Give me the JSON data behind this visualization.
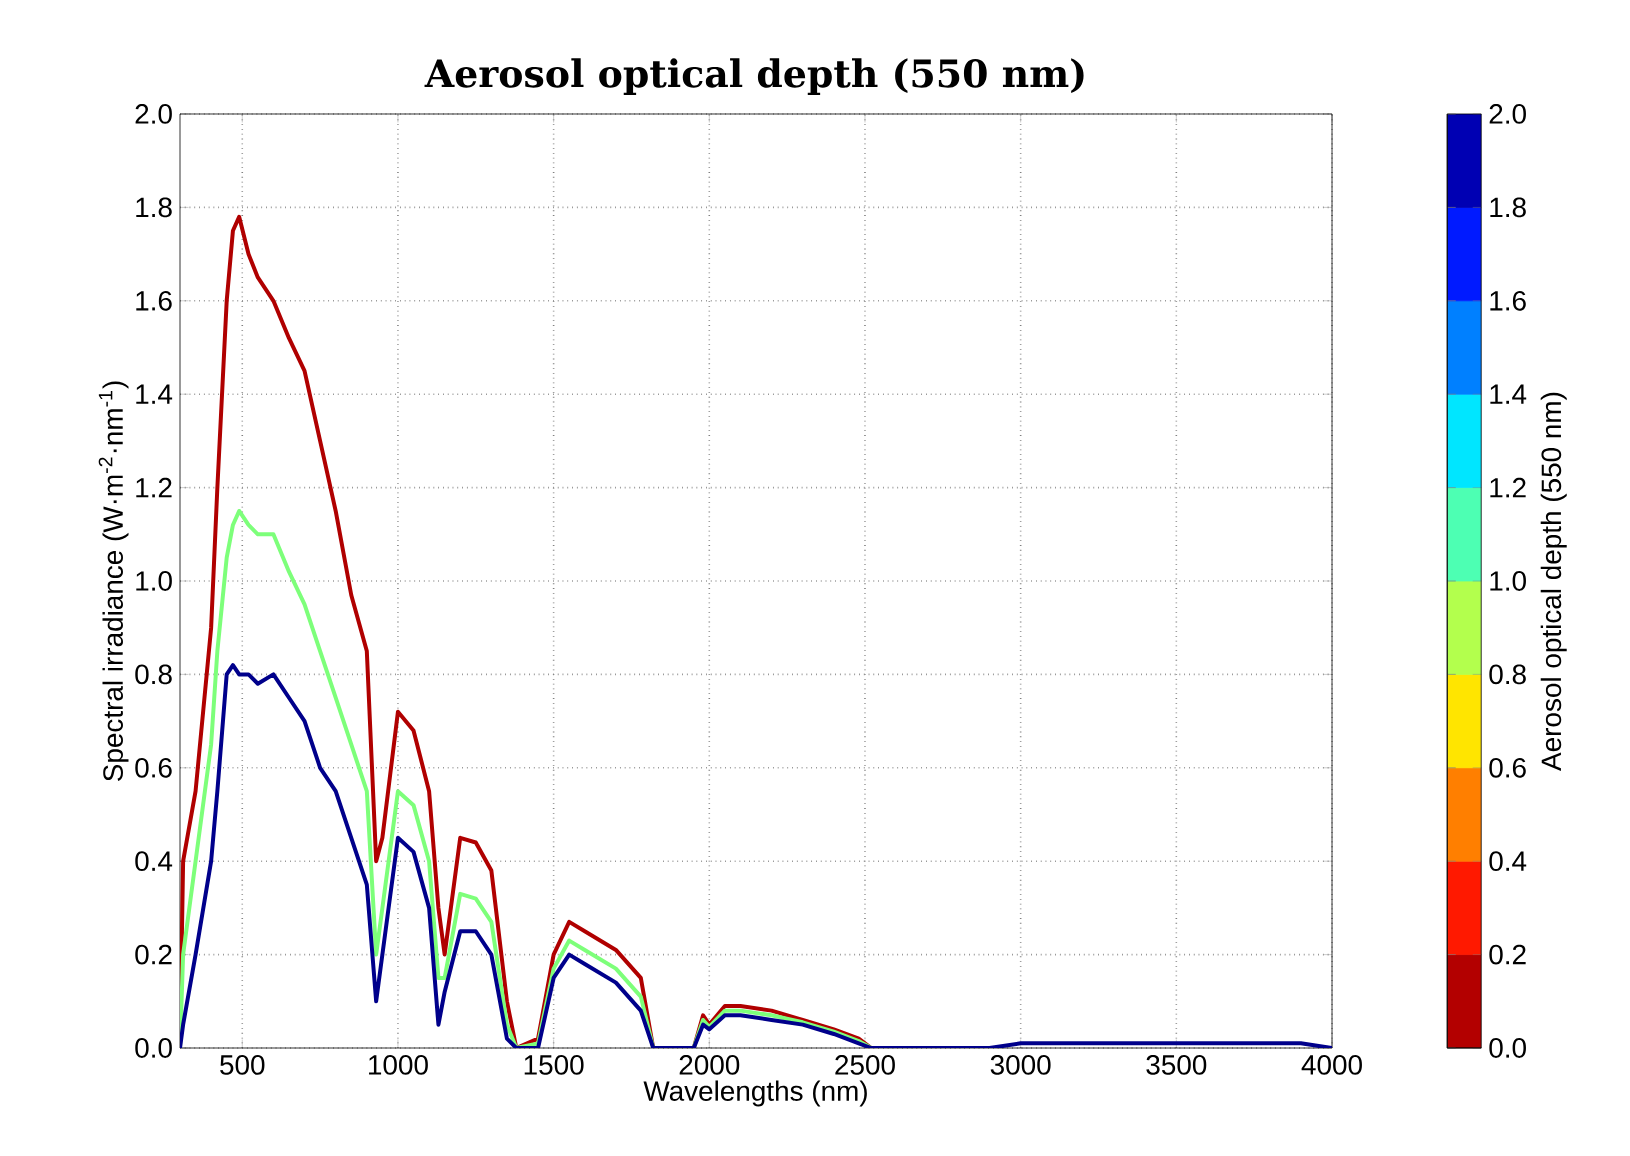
{
  "chart_data": {
    "type": "line",
    "title": "**Aerosol optical depth (550 nm)**",
    "xlabel": "Wavelengths (nm)",
    "ylabel": "Spectral irradiance (W·m$^{-2}$·nm$^{-1}$)",
    "clabel": "Aerosol optical depth (550 nm)",
    "x": [
      300,
      310,
      350,
      400,
      420,
      450,
      470,
      490,
      520,
      550,
      600,
      650,
      700,
      750,
      800,
      850,
      900,
      930,
      950,
      1000,
      1050,
      1100,
      1130,
      1150,
      1200,
      1250,
      1300,
      1350,
      1380,
      1450,
      1500,
      1550,
      1600,
      1700,
      1780,
      1820,
      1950,
      1980,
      2000,
      2050,
      2100,
      2200,
      2300,
      2400,
      2480,
      2520,
      2900,
      3000,
      3500,
      3900,
      4000
    ],
    "series": [
      {
        "color": "#b00000",
        "values": [
          0,
          0.4,
          0.55,
          0.9,
          1.2,
          1.6,
          1.75,
          1.78,
          1.7,
          1.65,
          1.6,
          1.52,
          1.45,
          1.3,
          1.15,
          0.97,
          0.85,
          0.4,
          0.45,
          0.72,
          0.68,
          0.55,
          0.3,
          0.2,
          0.45,
          0.44,
          0.38,
          0.1,
          0,
          0.02,
          0.2,
          0.27,
          0.25,
          0.21,
          0.15,
          0,
          0,
          0.07,
          0.05,
          0.09,
          0.09,
          0.08,
          0.06,
          0.04,
          0.02,
          0,
          0,
          null,
          null,
          null,
          null
        ]
      },
      {
        "color": "#7dff7a",
        "values": [
          0,
          0.2,
          0.4,
          0.65,
          0.85,
          1.05,
          1.12,
          1.15,
          1.12,
          1.1,
          1.1,
          1.02,
          0.95,
          0.85,
          0.75,
          0.65,
          0.55,
          0.2,
          0.3,
          0.55,
          0.52,
          0.4,
          0.15,
          0.15,
          0.33,
          0.32,
          0.27,
          0.05,
          0,
          0.01,
          0.17,
          0.23,
          0.21,
          0.17,
          0.11,
          0,
          0,
          0.06,
          0.045,
          0.08,
          0.08,
          0.07,
          0.055,
          0.035,
          0.015,
          0,
          0,
          null,
          null,
          null,
          null
        ]
      },
      {
        "color": "#00008b",
        "values": [
          0,
          0.05,
          0.2,
          0.4,
          0.55,
          0.8,
          0.82,
          0.8,
          0.8,
          0.78,
          0.8,
          0.75,
          0.7,
          0.6,
          0.55,
          0.45,
          0.35,
          0.1,
          0.2,
          0.45,
          0.42,
          0.3,
          0.05,
          0.12,
          0.25,
          0.25,
          0.2,
          0.02,
          0,
          0,
          0.15,
          0.2,
          0.18,
          0.14,
          0.08,
          0,
          0,
          0.05,
          0.04,
          0.07,
          0.07,
          0.06,
          0.05,
          0.03,
          0.01,
          0,
          0,
          0.01,
          0.01,
          0.01,
          0
        ]
      }
    ],
    "xlim": [
      300,
      4000
    ],
    "ylim": [
      0,
      2
    ],
    "xticks": [
      500,
      1000,
      1500,
      2000,
      2500,
      3000,
      3500,
      4000
    ],
    "yticks": [
      {
        "value": 0,
        "label": "0.0"
      },
      {
        "value": 0.2,
        "label": "0.2"
      },
      {
        "value": 0.4,
        "label": "0.4"
      },
      {
        "value": 0.6,
        "label": "0.6"
      },
      {
        "value": 0.8,
        "label": "0.8"
      },
      {
        "value": 1,
        "label": "1.0"
      },
      {
        "value": 1.2,
        "label": "1.2"
      },
      {
        "value": 1.4,
        "label": "1.4"
      },
      {
        "value": 1.6,
        "label": "1.6"
      },
      {
        "value": 1.8,
        "label": "1.8"
      },
      {
        "value": 2,
        "label": "2.0"
      }
    ],
    "clim": [
      0,
      2
    ],
    "cticks": [
      {
        "value": 0,
        "label": "0.0"
      },
      {
        "value": 0.2,
        "label": "0.2"
      },
      {
        "value": 0.4,
        "label": "0.4"
      },
      {
        "value": 0.6,
        "label": "0.6"
      },
      {
        "value": 0.8,
        "label": "0.8"
      },
      {
        "value": 1,
        "label": "1.0"
      },
      {
        "value": 1.2,
        "label": "1.2"
      },
      {
        "value": 1.4,
        "label": "1.4"
      },
      {
        "value": 1.6,
        "label": "1.6"
      },
      {
        "value": 1.8,
        "label": "1.8"
      },
      {
        "value": 2,
        "label": "2.0"
      }
    ],
    "grid": true
  }
}
